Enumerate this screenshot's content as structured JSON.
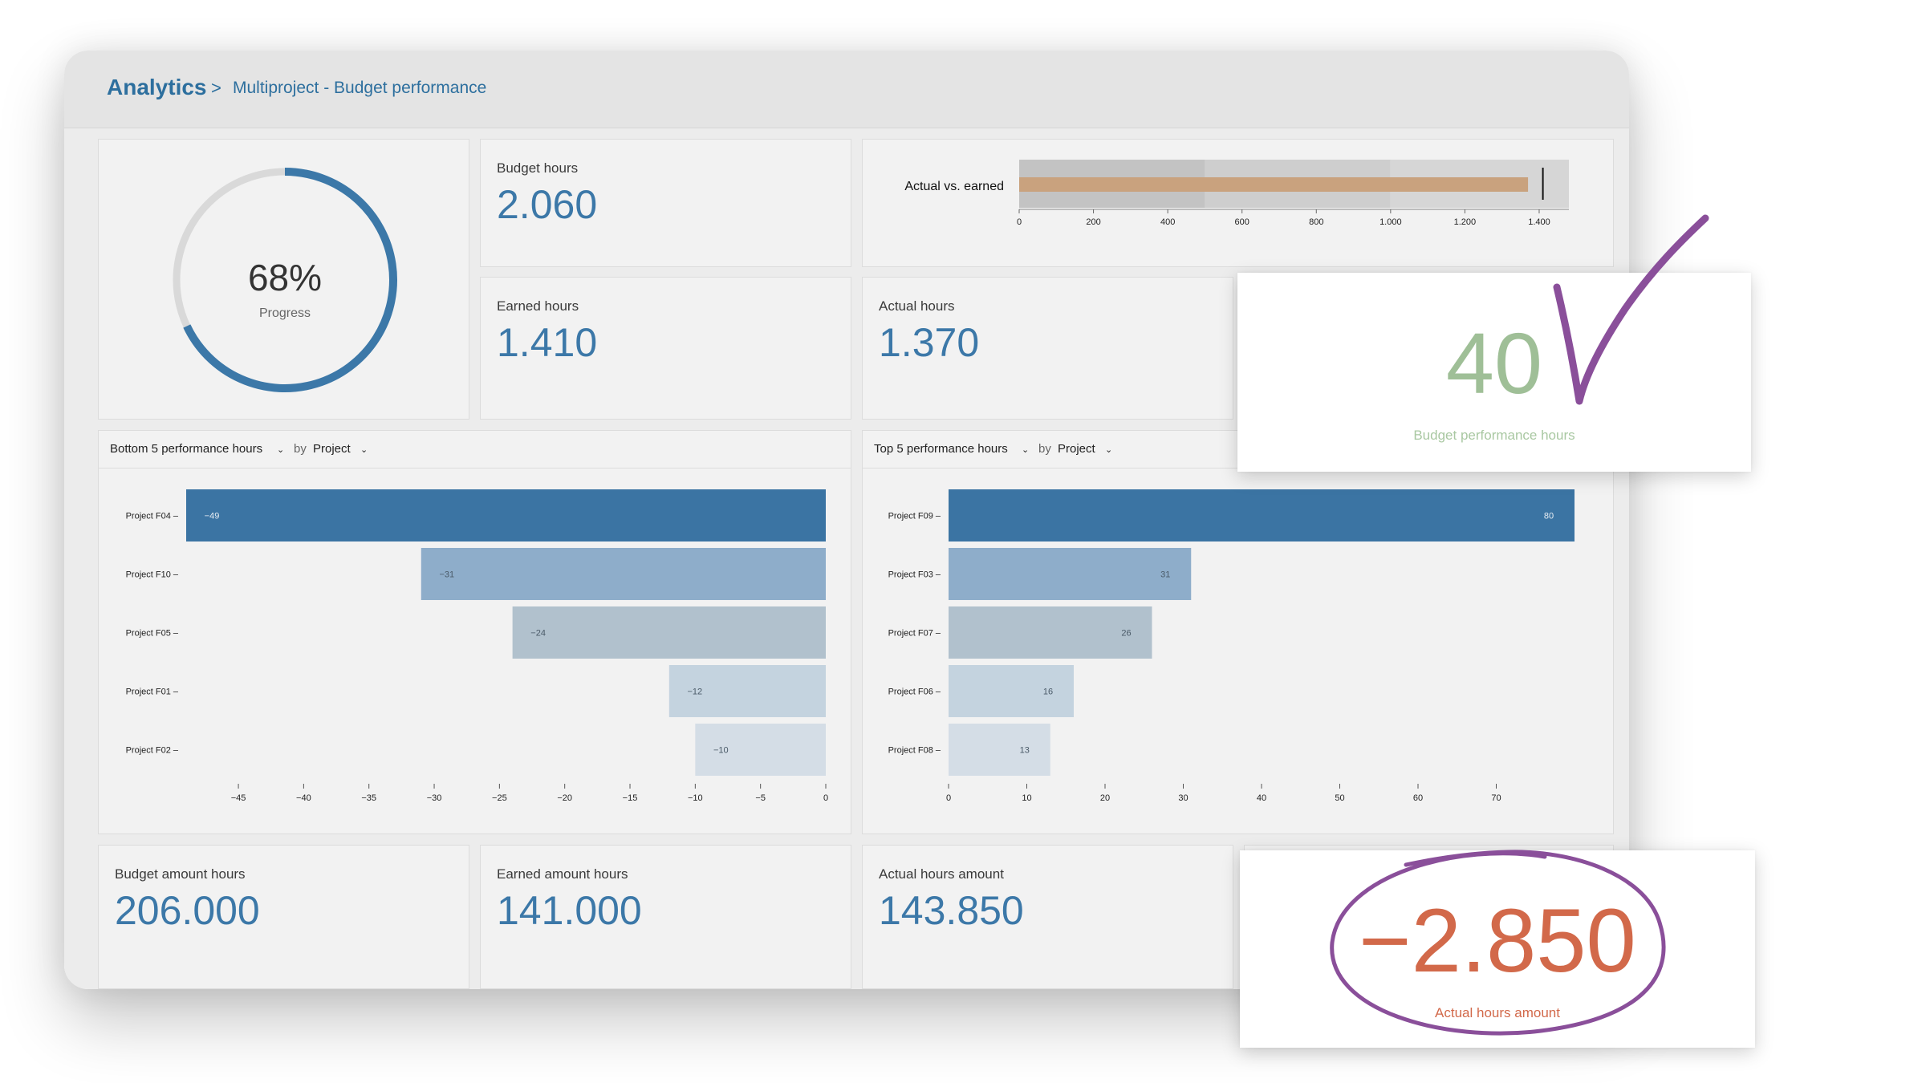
{
  "breadcrumb": {
    "root": "Analytics",
    "separator": ">",
    "page": "Multiproject - Budget performance"
  },
  "progress": {
    "value_text": "68%",
    "value": 0.68,
    "label": "Progress"
  },
  "kpis": {
    "budget_hours": {
      "label": "Budget hours",
      "value": "2.060"
    },
    "earned_hours": {
      "label": "Earned hours",
      "value": "1.410"
    },
    "actual_hours": {
      "label": "Actual hours",
      "value": "1.370"
    },
    "budget_amount_hours": {
      "label": "Budget amount hours",
      "value": "206.000"
    },
    "earned_amount_hours": {
      "label": "Earned amount hours",
      "value": "141.000"
    },
    "actual_hours_amount": {
      "label": "Actual hours amount",
      "value": "143.850"
    }
  },
  "bottom_chart_header": {
    "metric": "Bottom 5 performance hours",
    "by": "by",
    "dimension": "Project"
  },
  "top_chart_header": {
    "metric": "Top 5 performance hours",
    "by": "by",
    "dimension": "Project"
  },
  "callouts": {
    "budget_performance": {
      "value": "40",
      "label": "Budget performance hours"
    },
    "actual_hours_amount": {
      "value": "−2.850",
      "label": "Actual hours amount"
    }
  },
  "colors": {
    "accent": "#3c78a8",
    "bullet_bar": "#c9a27e",
    "callout_green": "#9fbf97",
    "callout_red": "#d2694a",
    "annotation_purple": "#8a4f9a"
  },
  "icons": [
    "chevron-down-icon",
    "checkmark-annotation-icon",
    "circle-annotation-icon"
  ],
  "chart_data": [
    {
      "type": "bullet",
      "title": "Actual vs. earned",
      "value": 1370,
      "target": 1410,
      "ranges": [
        500,
        1000,
        1480
      ],
      "xlim": [
        0,
        1480
      ],
      "ticks": [
        0,
        200,
        400,
        600,
        800,
        1000,
        1200,
        1400
      ],
      "tick_labels": [
        "0",
        "200",
        "400",
        "600",
        "800",
        "1.000",
        "1.200",
        "1.400"
      ]
    },
    {
      "type": "bar",
      "orientation": "horizontal",
      "title": "Bottom 5 performance hours",
      "categories": [
        "Project F04",
        "Project F10",
        "Project F05",
        "Project F01",
        "Project F02"
      ],
      "values": [
        -49,
        -31,
        -24,
        -12,
        -10
      ],
      "value_labels": [
        "−49",
        "−31",
        "−24",
        "−12",
        "−10"
      ],
      "colors": [
        "#3b74a3",
        "#8eadca",
        "#b1c1cd",
        "#c4d3df",
        "#d4dde6"
      ],
      "xlim": [
        -49,
        0
      ],
      "ticks": [
        -45,
        -40,
        -35,
        -30,
        -25,
        -20,
        -15,
        -10,
        -5,
        0
      ],
      "tick_labels": [
        "−45",
        "−40",
        "−35",
        "−30",
        "−25",
        "−20",
        "−15",
        "−10",
        "−5",
        "0"
      ]
    },
    {
      "type": "bar",
      "orientation": "horizontal",
      "title": "Top 5 performance hours",
      "categories": [
        "Project F09",
        "Project F03",
        "Project F07",
        "Project F06",
        "Project F08"
      ],
      "values": [
        80,
        31,
        26,
        16,
        13
      ],
      "value_labels": [
        "80",
        "31",
        "26",
        "16",
        "13"
      ],
      "colors": [
        "#3b74a3",
        "#8eadca",
        "#b1c1cd",
        "#c4d3df",
        "#d4dde6"
      ],
      "xlim": [
        0,
        80
      ],
      "ticks": [
        0,
        10,
        20,
        30,
        40,
        50,
        60,
        70
      ],
      "tick_labels": [
        "0",
        "10",
        "20",
        "30",
        "40",
        "50",
        "60",
        "70"
      ]
    }
  ]
}
